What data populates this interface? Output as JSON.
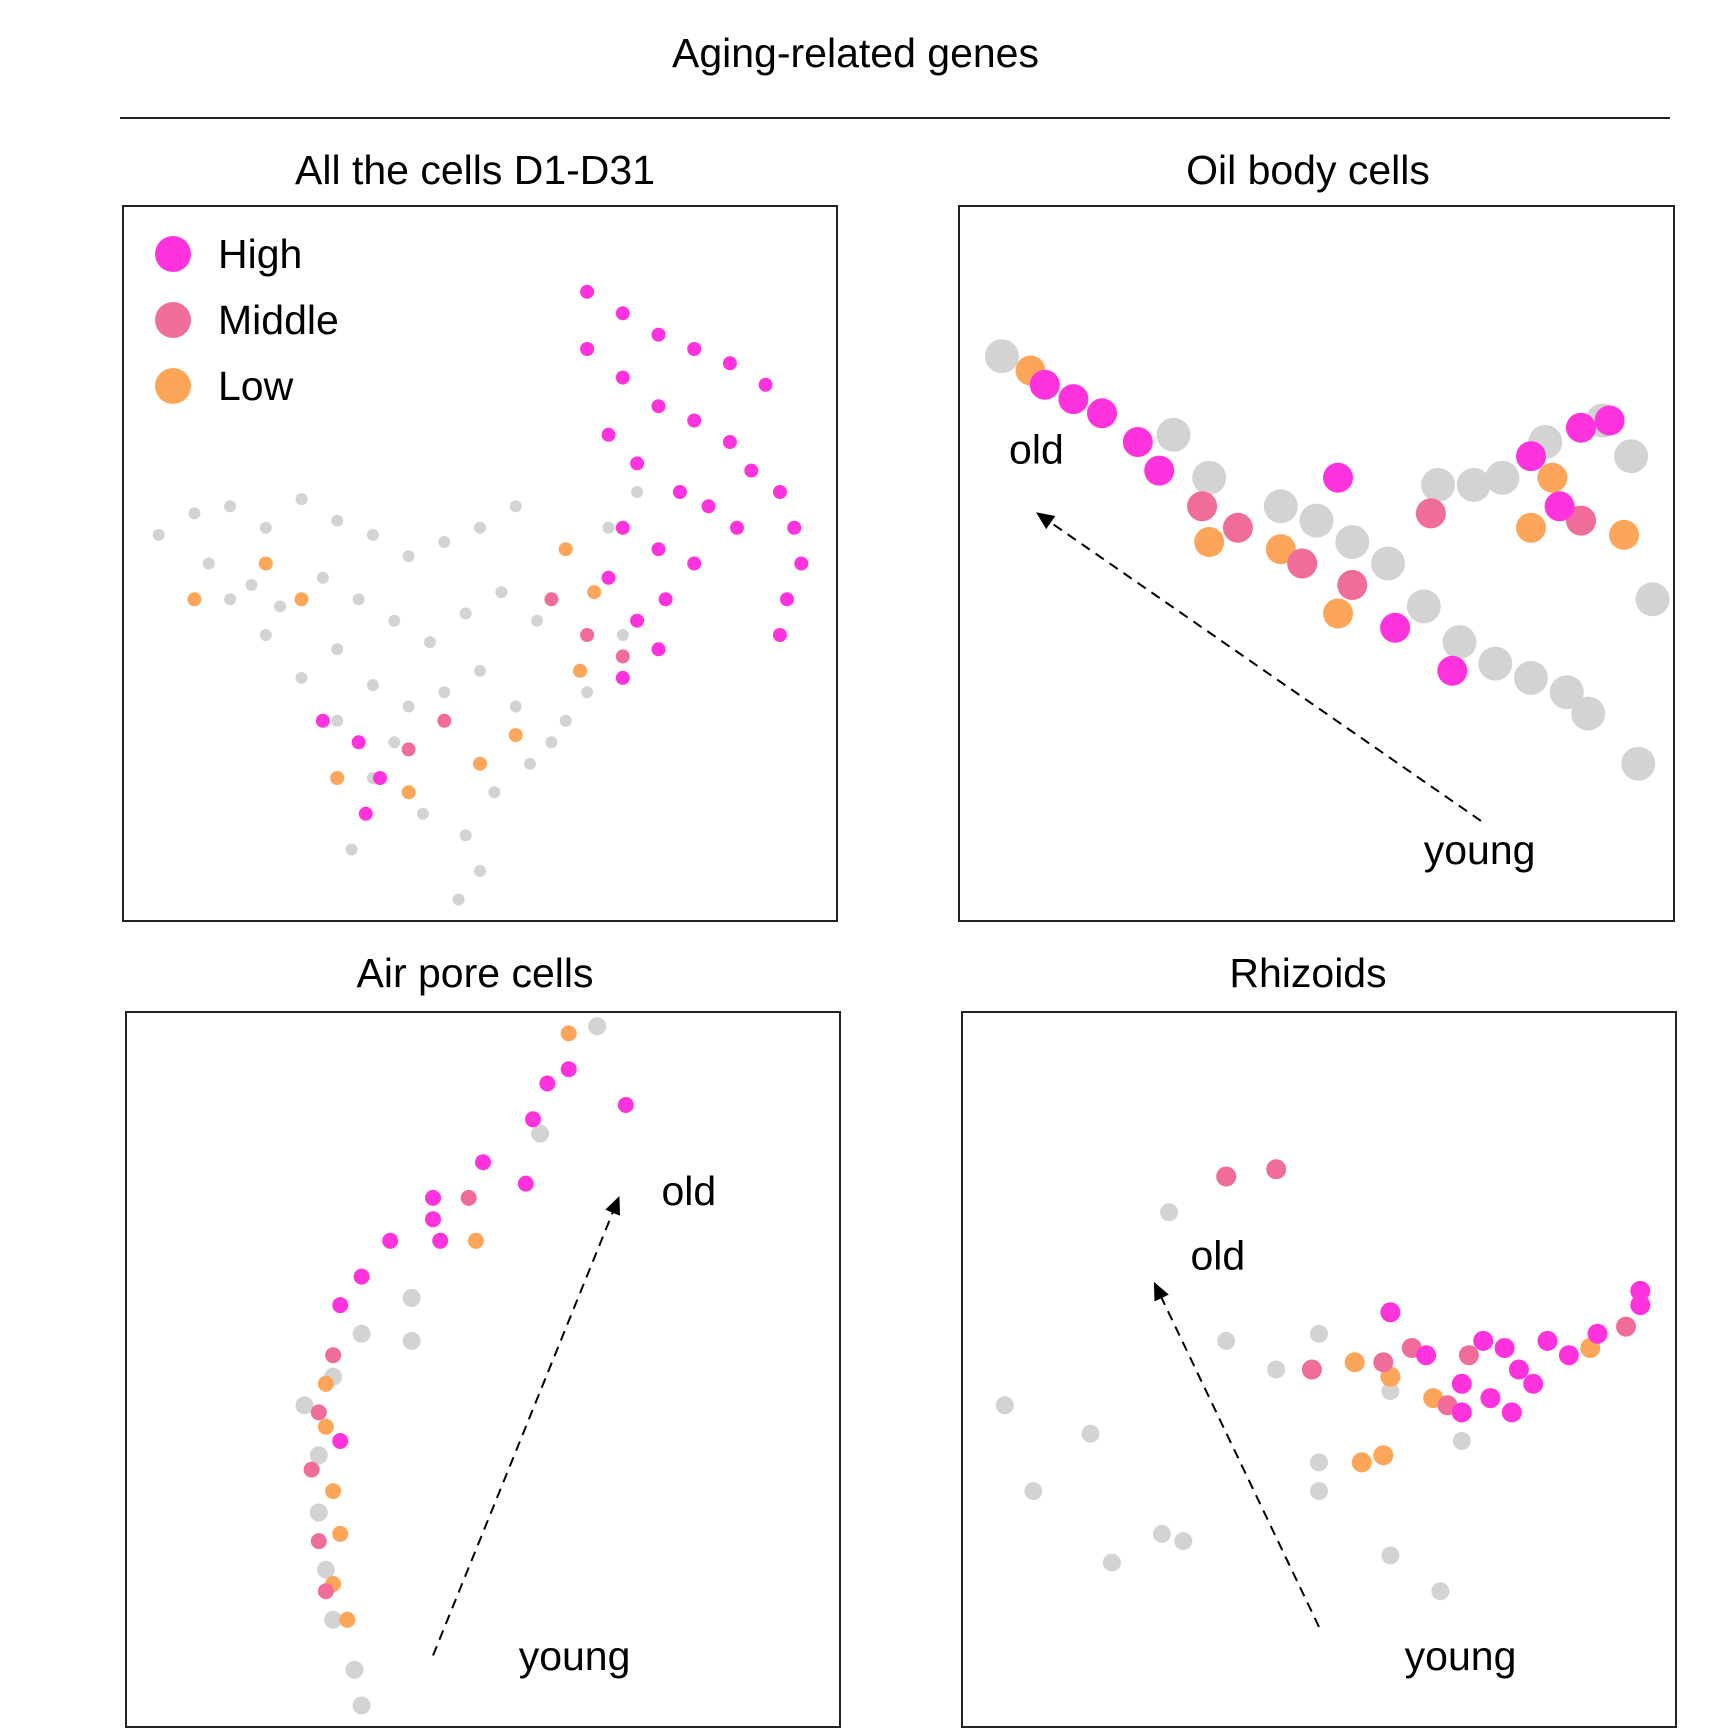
{
  "title": "Aging-related genes",
  "colors": {
    "High": "#ff33dd",
    "Middle": "#f06c9b",
    "Low": "#fda65a",
    "Background": "#d3d3d3"
  },
  "chart_data": [
    {
      "type": "scatter",
      "title": "All the cells D1-D31",
      "legend": {
        "placement": "top-left",
        "entries": [
          "High",
          "Middle",
          "Low"
        ]
      },
      "arrow": null,
      "points": {
        "Background": [
          [
            0.05,
            0.46
          ],
          [
            0.1,
            0.43
          ],
          [
            0.15,
            0.42
          ],
          [
            0.2,
            0.45
          ],
          [
            0.25,
            0.41
          ],
          [
            0.3,
            0.44
          ],
          [
            0.35,
            0.46
          ],
          [
            0.4,
            0.49
          ],
          [
            0.45,
            0.47
          ],
          [
            0.5,
            0.45
          ],
          [
            0.55,
            0.42
          ],
          [
            0.12,
            0.5
          ],
          [
            0.18,
            0.53
          ],
          [
            0.22,
            0.56
          ],
          [
            0.28,
            0.52
          ],
          [
            0.33,
            0.55
          ],
          [
            0.38,
            0.58
          ],
          [
            0.43,
            0.61
          ],
          [
            0.48,
            0.57
          ],
          [
            0.53,
            0.54
          ],
          [
            0.58,
            0.58
          ],
          [
            0.3,
            0.62
          ],
          [
            0.35,
            0.67
          ],
          [
            0.4,
            0.7
          ],
          [
            0.45,
            0.68
          ],
          [
            0.5,
            0.65
          ],
          [
            0.55,
            0.7
          ],
          [
            0.6,
            0.75
          ],
          [
            0.35,
            0.8
          ],
          [
            0.42,
            0.85
          ],
          [
            0.48,
            0.88
          ],
          [
            0.52,
            0.82
          ],
          [
            0.57,
            0.78
          ],
          [
            0.62,
            0.72
          ],
          [
            0.65,
            0.68
          ],
          [
            0.7,
            0.6
          ],
          [
            0.68,
            0.45
          ],
          [
            0.72,
            0.4
          ],
          [
            0.68,
            0.52
          ],
          [
            0.32,
            0.9
          ],
          [
            0.5,
            0.93
          ],
          [
            0.47,
            0.97
          ],
          [
            0.2,
            0.6
          ],
          [
            0.15,
            0.55
          ],
          [
            0.25,
            0.66
          ],
          [
            0.3,
            0.72
          ],
          [
            0.38,
            0.75
          ]
        ],
        "High": [
          [
            0.65,
            0.12
          ],
          [
            0.7,
            0.15
          ],
          [
            0.75,
            0.18
          ],
          [
            0.8,
            0.2
          ],
          [
            0.85,
            0.22
          ],
          [
            0.9,
            0.25
          ],
          [
            0.65,
            0.2
          ],
          [
            0.7,
            0.24
          ],
          [
            0.75,
            0.28
          ],
          [
            0.8,
            0.3
          ],
          [
            0.85,
            0.33
          ],
          [
            0.88,
            0.37
          ],
          [
            0.68,
            0.32
          ],
          [
            0.72,
            0.36
          ],
          [
            0.78,
            0.4
          ],
          [
            0.82,
            0.42
          ],
          [
            0.86,
            0.45
          ],
          [
            0.7,
            0.45
          ],
          [
            0.75,
            0.48
          ],
          [
            0.8,
            0.5
          ],
          [
            0.92,
            0.4
          ],
          [
            0.94,
            0.45
          ],
          [
            0.95,
            0.5
          ],
          [
            0.93,
            0.55
          ],
          [
            0.92,
            0.6
          ],
          [
            0.68,
            0.52
          ],
          [
            0.72,
            0.58
          ],
          [
            0.75,
            0.62
          ],
          [
            0.7,
            0.66
          ],
          [
            0.76,
            0.55
          ],
          [
            0.28,
            0.72
          ],
          [
            0.33,
            0.75
          ],
          [
            0.36,
            0.8
          ],
          [
            0.34,
            0.85
          ]
        ],
        "Middle": [
          [
            0.6,
            0.55
          ],
          [
            0.65,
            0.6
          ],
          [
            0.7,
            0.63
          ],
          [
            0.4,
            0.76
          ],
          [
            0.45,
            0.72
          ]
        ],
        "Low": [
          [
            0.62,
            0.48
          ],
          [
            0.66,
            0.54
          ],
          [
            0.64,
            0.65
          ],
          [
            0.3,
            0.8
          ],
          [
            0.4,
            0.82
          ],
          [
            0.5,
            0.78
          ],
          [
            0.55,
            0.74
          ],
          [
            0.2,
            0.5
          ],
          [
            0.25,
            0.55
          ],
          [
            0.1,
            0.55
          ]
        ]
      }
    },
    {
      "type": "scatter",
      "title": "Oil body cells",
      "arrow": {
        "start_label": "young",
        "end_label": "old"
      },
      "points": {
        "Background": [
          [
            0.06,
            0.21
          ],
          [
            0.3,
            0.32
          ],
          [
            0.35,
            0.38
          ],
          [
            0.45,
            0.42
          ],
          [
            0.5,
            0.44
          ],
          [
            0.55,
            0.47
          ],
          [
            0.6,
            0.5
          ],
          [
            0.65,
            0.56
          ],
          [
            0.7,
            0.61
          ],
          [
            0.75,
            0.64
          ],
          [
            0.8,
            0.66
          ],
          [
            0.85,
            0.68
          ],
          [
            0.88,
            0.71
          ],
          [
            0.95,
            0.78
          ],
          [
            0.67,
            0.39
          ],
          [
            0.72,
            0.39
          ],
          [
            0.76,
            0.38
          ],
          [
            0.82,
            0.33
          ],
          [
            0.9,
            0.3
          ],
          [
            0.94,
            0.35
          ],
          [
            0.97,
            0.55
          ]
        ],
        "High": [
          [
            0.12,
            0.25
          ],
          [
            0.16,
            0.27
          ],
          [
            0.2,
            0.29
          ],
          [
            0.25,
            0.33
          ],
          [
            0.28,
            0.37
          ],
          [
            0.53,
            0.38
          ],
          [
            0.61,
            0.59
          ],
          [
            0.69,
            0.65
          ],
          [
            0.8,
            0.35
          ],
          [
            0.87,
            0.31
          ],
          [
            0.91,
            0.3
          ],
          [
            0.84,
            0.42
          ]
        ],
        "Middle": [
          [
            0.34,
            0.42
          ],
          [
            0.39,
            0.45
          ],
          [
            0.48,
            0.5
          ],
          [
            0.55,
            0.53
          ],
          [
            0.66,
            0.43
          ],
          [
            0.87,
            0.44
          ]
        ],
        "Low": [
          [
            0.1,
            0.23
          ],
          [
            0.35,
            0.47
          ],
          [
            0.45,
            0.48
          ],
          [
            0.53,
            0.57
          ],
          [
            0.83,
            0.38
          ],
          [
            0.93,
            0.46
          ],
          [
            0.8,
            0.45
          ]
        ]
      }
    },
    {
      "type": "scatter",
      "title": "Air pore cells",
      "arrow": {
        "start_label": "young",
        "end_label": "old"
      },
      "points": {
        "Background": [
          [
            0.25,
            0.55
          ],
          [
            0.27,
            0.62
          ],
          [
            0.27,
            0.7
          ],
          [
            0.28,
            0.78
          ],
          [
            0.29,
            0.85
          ],
          [
            0.32,
            0.92
          ],
          [
            0.33,
            0.97
          ],
          [
            0.29,
            0.51
          ],
          [
            0.33,
            0.45
          ],
          [
            0.4,
            0.4
          ],
          [
            0.58,
            0.17
          ],
          [
            0.66,
            0.02
          ],
          [
            0.4,
            0.46
          ]
        ],
        "High": [
          [
            0.3,
            0.41
          ],
          [
            0.33,
            0.37
          ],
          [
            0.37,
            0.32
          ],
          [
            0.43,
            0.26
          ],
          [
            0.5,
            0.21
          ],
          [
            0.57,
            0.15
          ],
          [
            0.59,
            0.1
          ],
          [
            0.62,
            0.08
          ],
          [
            0.7,
            0.13
          ],
          [
            0.56,
            0.24
          ],
          [
            0.44,
            0.32
          ],
          [
            0.43,
            0.29
          ],
          [
            0.3,
            0.6
          ]
        ],
        "Middle": [
          [
            0.29,
            0.48
          ],
          [
            0.27,
            0.56
          ],
          [
            0.26,
            0.64
          ],
          [
            0.27,
            0.74
          ],
          [
            0.28,
            0.81
          ],
          [
            0.48,
            0.26
          ]
        ],
        "Low": [
          [
            0.28,
            0.52
          ],
          [
            0.28,
            0.58
          ],
          [
            0.29,
            0.67
          ],
          [
            0.3,
            0.73
          ],
          [
            0.29,
            0.8
          ],
          [
            0.31,
            0.85
          ],
          [
            0.49,
            0.32
          ],
          [
            0.62,
            0.03
          ]
        ]
      }
    },
    {
      "type": "scatter",
      "title": "Rhizoids",
      "arrow": {
        "start_label": "young",
        "end_label": "old"
      },
      "points": {
        "Background": [
          [
            0.06,
            0.55
          ],
          [
            0.1,
            0.67
          ],
          [
            0.18,
            0.59
          ],
          [
            0.21,
            0.77
          ],
          [
            0.28,
            0.73
          ],
          [
            0.31,
            0.74
          ],
          [
            0.29,
            0.28
          ],
          [
            0.37,
            0.46
          ],
          [
            0.44,
            0.5
          ],
          [
            0.5,
            0.45
          ],
          [
            0.6,
            0.53
          ],
          [
            0.7,
            0.6
          ],
          [
            0.6,
            0.76
          ],
          [
            0.67,
            0.81
          ],
          [
            0.5,
            0.63
          ],
          [
            0.5,
            0.67
          ]
        ],
        "High": [
          [
            0.6,
            0.42
          ],
          [
            0.65,
            0.48
          ],
          [
            0.73,
            0.46
          ],
          [
            0.7,
            0.52
          ],
          [
            0.76,
            0.47
          ],
          [
            0.78,
            0.5
          ],
          [
            0.82,
            0.46
          ],
          [
            0.8,
            0.52
          ],
          [
            0.85,
            0.48
          ],
          [
            0.77,
            0.56
          ],
          [
            0.74,
            0.54
          ],
          [
            0.89,
            0.45
          ],
          [
            0.95,
            0.41
          ],
          [
            0.95,
            0.39
          ],
          [
            0.7,
            0.56
          ]
        ],
        "Middle": [
          [
            0.37,
            0.23
          ],
          [
            0.44,
            0.22
          ],
          [
            0.49,
            0.5
          ],
          [
            0.59,
            0.49
          ],
          [
            0.63,
            0.47
          ],
          [
            0.71,
            0.48
          ],
          [
            0.68,
            0.55
          ],
          [
            0.93,
            0.44
          ]
        ],
        "Low": [
          [
            0.55,
            0.49
          ],
          [
            0.6,
            0.51
          ],
          [
            0.56,
            0.63
          ],
          [
            0.59,
            0.62
          ],
          [
            0.66,
            0.54
          ],
          [
            0.88,
            0.47
          ]
        ]
      }
    }
  ]
}
